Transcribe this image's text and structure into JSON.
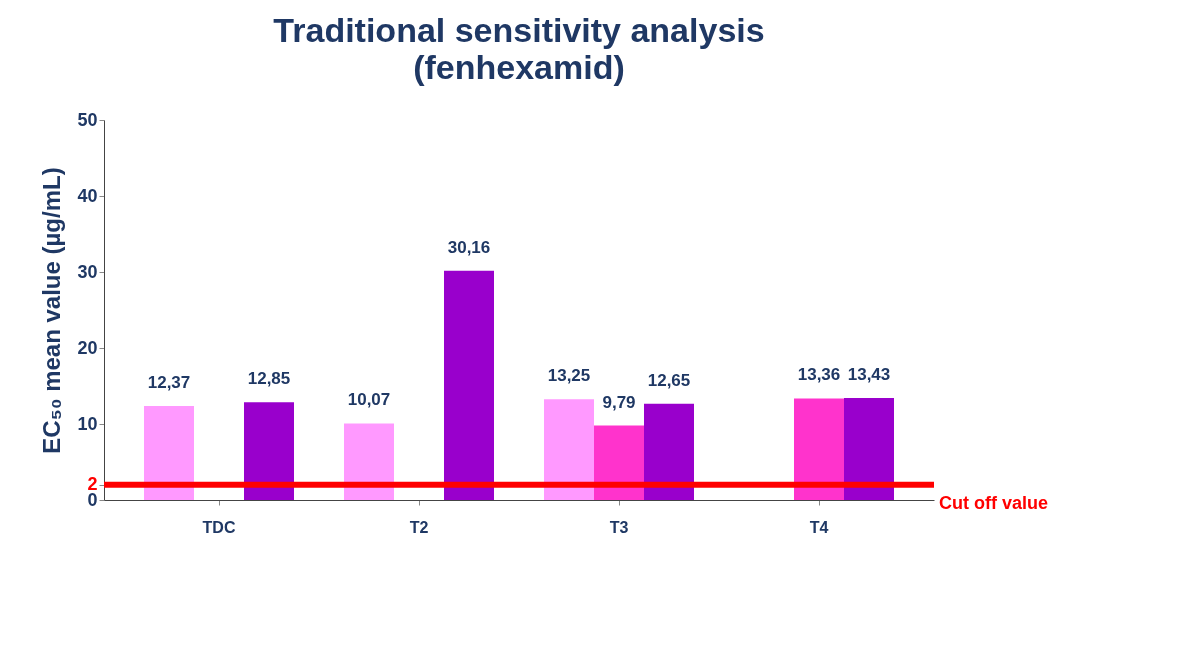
{
  "chart_data": {
    "type": "bar",
    "title": "Traditional sensitivity analysis",
    "subtitle": "(fenhexamid)",
    "ylabel": "EC₅₀  mean value (µg/mL)",
    "categories": [
      "TDC",
      "T2",
      "T3",
      "T4"
    ],
    "series": [
      {
        "color": "#ff99ff",
        "values": [
          12.37,
          10.07,
          13.25,
          null
        ],
        "value_labels": [
          "12,37",
          "10,07",
          "13,25",
          null
        ]
      },
      {
        "color": "#ff33cc",
        "values": [
          null,
          null,
          9.79,
          13.36
        ],
        "value_labels": [
          null,
          null,
          "9,79",
          "13,36"
        ]
      },
      {
        "color": "#9900cc",
        "values": [
          12.85,
          30.16,
          12.65,
          13.43
        ],
        "value_labels": [
          "12,85",
          "30,16",
          "12,65",
          "13,43"
        ]
      }
    ],
    "ylim": [
      0,
      50
    ],
    "yticks": [
      0,
      2,
      10,
      20,
      30,
      40,
      50
    ],
    "grid": false,
    "legend": false,
    "ref_lines": [
      {
        "axis": "y",
        "value": 2,
        "label": "Cut off value",
        "color": "#ff0000"
      }
    ]
  }
}
